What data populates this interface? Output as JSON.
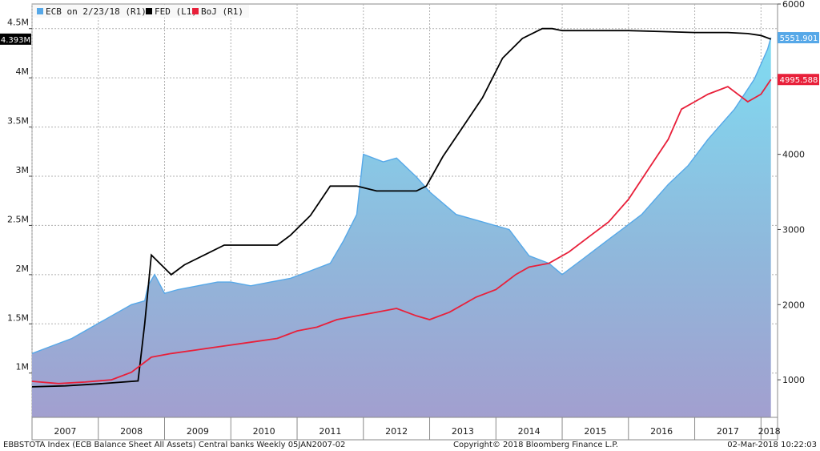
{
  "chart_data": {
    "type": "area",
    "title": "",
    "legend": [
      {
        "label": "ECB  on 2/23/18 (R1)",
        "color": "#56a8e8"
      },
      {
        "label": "FED (L1)",
        "color": "#000000"
      },
      {
        "label": "BoJ (R1)",
        "color": "#e8203a"
      }
    ],
    "legend_placement": "top-left",
    "grid": true,
    "x_axis": {
      "range": [
        2007.0,
        2018.25
      ],
      "tick_labels": [
        "2007",
        "2008",
        "2009",
        "2010",
        "2011",
        "2012",
        "2013",
        "2014",
        "2015",
        "2016",
        "2017",
        "2018"
      ]
    },
    "left_axis": {
      "range": [
        0.55,
        4.75
      ],
      "ticks": [
        1.0,
        1.5,
        2.0,
        2.5,
        3.0,
        3.5,
        4.0,
        4.5
      ],
      "tick_labels": [
        "1M",
        "1.5M",
        "2M",
        "2.5M",
        "3M",
        "3.5M",
        "4M",
        "4.5M"
      ]
    },
    "right_axis": {
      "range": [
        500,
        6000
      ],
      "ticks": [
        1000,
        2000,
        3000,
        4000,
        5000,
        6000
      ],
      "tick_labels": [
        "1000",
        "2000",
        "3000",
        "4000",
        "5000",
        "6000"
      ]
    },
    "series": [
      {
        "name": "ECB",
        "axis": "right",
        "color": "#56a8e8",
        "last_value_label": "5551.901",
        "x": [
          2007.0,
          2007.3,
          2007.6,
          2007.9,
          2008.2,
          2008.5,
          2008.7,
          2008.75,
          2008.85,
          2009.0,
          2009.2,
          2009.5,
          2009.8,
          2010.0,
          2010.3,
          2010.6,
          2010.9,
          2011.2,
          2011.5,
          2011.7,
          2011.9,
          2012.0,
          2012.3,
          2012.5,
          2012.8,
          2013.0,
          2013.4,
          2013.8,
          2014.2,
          2014.5,
          2014.8,
          2015.0,
          2015.3,
          2015.6,
          2015.9,
          2016.2,
          2016.6,
          2016.9,
          2017.2,
          2017.6,
          2017.9,
          2018.1,
          2018.15
        ],
        "y": [
          1350,
          1450,
          1550,
          1700,
          1850,
          2000,
          2050,
          2250,
          2400,
          2150,
          2200,
          2250,
          2300,
          2300,
          2250,
          2300,
          2350,
          2450,
          2550,
          2850,
          3200,
          4000,
          3900,
          3950,
          3700,
          3500,
          3200,
          3100,
          3000,
          2650,
          2550,
          2400,
          2600,
          2800,
          3000,
          3200,
          3600,
          3850,
          4200,
          4600,
          5000,
          5400,
          5551.901
        ]
      },
      {
        "name": "FED",
        "axis": "left",
        "color": "#000000",
        "last_value_label": "4.393M",
        "x": [
          2007.0,
          2007.5,
          2008.0,
          2008.6,
          2008.7,
          2008.8,
          2008.95,
          2009.1,
          2009.3,
          2009.6,
          2009.9,
          2010.3,
          2010.7,
          2010.9,
          2011.2,
          2011.5,
          2011.9,
          2012.2,
          2012.6,
          2012.8,
          2012.95,
          2013.2,
          2013.5,
          2013.8,
          2014.1,
          2014.4,
          2014.7,
          2014.85,
          2015.0,
          2015.5,
          2016.0,
          2016.5,
          2017.0,
          2017.5,
          2017.8,
          2018.0,
          2018.15
        ],
        "y": [
          0.86,
          0.87,
          0.89,
          0.92,
          1.5,
          2.2,
          2.1,
          2.0,
          2.1,
          2.2,
          2.3,
          2.3,
          2.3,
          2.4,
          2.6,
          2.9,
          2.9,
          2.85,
          2.85,
          2.85,
          2.9,
          3.2,
          3.5,
          3.8,
          4.2,
          4.4,
          4.5,
          4.5,
          4.48,
          4.48,
          4.48,
          4.47,
          4.46,
          4.46,
          4.45,
          4.43,
          4.393
        ]
      },
      {
        "name": "BoJ",
        "axis": "right",
        "color": "#e8203a",
        "last_value_label": "4995.588",
        "x": [
          2007.0,
          2007.4,
          2007.8,
          2008.2,
          2008.5,
          2008.8,
          2009.1,
          2009.5,
          2009.9,
          2010.3,
          2010.7,
          2011.0,
          2011.3,
          2011.6,
          2011.9,
          2012.2,
          2012.5,
          2012.8,
          2013.0,
          2013.3,
          2013.7,
          2014.0,
          2014.3,
          2014.5,
          2014.8,
          2015.1,
          2015.4,
          2015.7,
          2016.0,
          2016.3,
          2016.6,
          2016.8,
          2017.0,
          2017.2,
          2017.5,
          2017.8,
          2018.0,
          2018.15
        ],
        "y": [
          980,
          950,
          970,
          1000,
          1100,
          1300,
          1350,
          1400,
          1450,
          1500,
          1550,
          1650,
          1700,
          1800,
          1850,
          1900,
          1950,
          1850,
          1800,
          1900,
          2100,
          2200,
          2400,
          2500,
          2550,
          2700,
          2900,
          3100,
          3400,
          3800,
          4200,
          4600,
          4700,
          4800,
          4900,
          4700,
          4800,
          4995.588
        ]
      }
    ]
  },
  "footer": {
    "left": "EBBSTOTA Index (ECB Balance Sheet All Assets) Central banks  Weekly 05JAN2007-02",
    "center": "Copyright© 2018 Bloomberg Finance L.P.",
    "right": "02-Mar-2018 10:22:03"
  }
}
